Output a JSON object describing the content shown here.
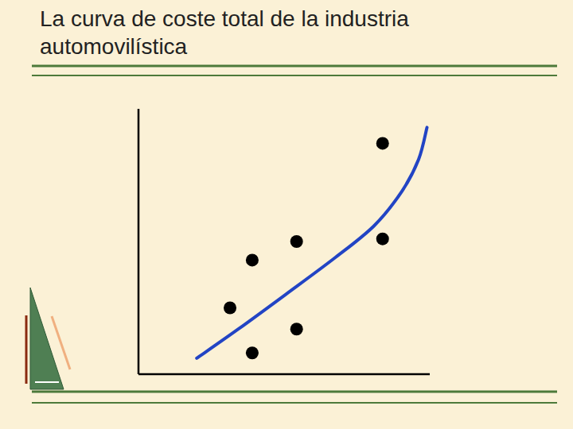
{
  "chart_data": {
    "type": "scatter",
    "title": "La curva de coste total de la industria automovilística",
    "xlim": [
      0,
      105
    ],
    "ylim": [
      0,
      100
    ],
    "xticks": [],
    "yticks": [],
    "grid": false,
    "tick_labels": false,
    "series": [
      {
        "type": "scatter",
        "color": "#000000",
        "marker": "circle",
        "x": [
          88,
          57,
          88,
          41,
          33,
          57,
          41
        ],
        "values": [
          87,
          50,
          51,
          43,
          25,
          17,
          8
        ]
      },
      {
        "type": "line",
        "color": "#2244c4",
        "line_style": "solid",
        "x": [
          21,
          36,
          53,
          71,
          85,
          95,
          101,
          104
        ],
        "values": [
          6,
          17,
          30,
          44,
          56,
          69,
          81,
          93
        ]
      }
    ]
  }
}
